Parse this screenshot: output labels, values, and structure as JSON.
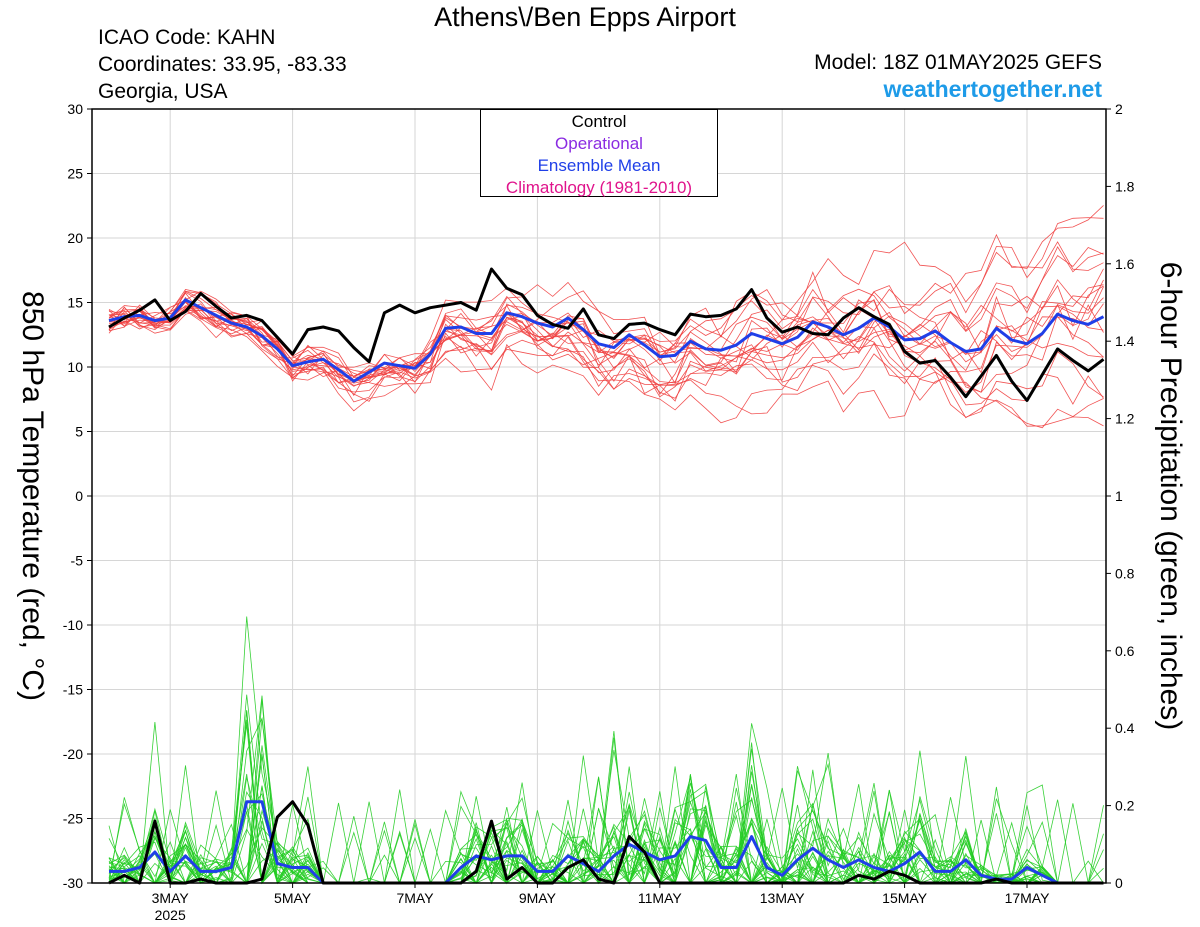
{
  "header": {
    "title": "Athens\\/Ben Epps Airport",
    "icao": "ICAO Code: KAHN",
    "coords": "Coordinates: 33.95, -83.33",
    "region": "Georgia, USA",
    "model": "Model: 18Z 01MAY2025 GEFS",
    "site": "weathertogether.net"
  },
  "legend": {
    "control": "Control",
    "operational": "Operational",
    "ensemble_mean": "Ensemble Mean",
    "climatology": "Climatology (1981-2010)"
  },
  "colors": {
    "control": "#000000",
    "operational": "#8a2be2",
    "ensemble_mean": "#1f3fe8",
    "climatology": "#e0148c",
    "members_temp": "#f04040",
    "members_precip": "#22cc22",
    "site": "#1e9be8"
  },
  "chart_data": {
    "type": "line",
    "title": "Athens\\/Ben Epps Airport",
    "ylabel_left": "850 hPa Temperature (red, °C)",
    "ylabel_right": "6-hour Precipitation (green, inches)",
    "y_left_range": [
      -30,
      30
    ],
    "y_left_ticks": [
      -30,
      -25,
      -20,
      -15,
      -10,
      -5,
      0,
      5,
      10,
      15,
      20,
      25,
      30
    ],
    "y_right_range": [
      0,
      2
    ],
    "y_right_ticks": [
      "0",
      "0.2",
      "0.4",
      "0.6",
      "0.8",
      "1",
      "1.2",
      "1.4",
      "1.6",
      "1.8",
      "2"
    ],
    "x_tick_labels": [
      "3MAY",
      "5MAY",
      "7MAY",
      "9MAY",
      "11MAY",
      "13MAY",
      "15MAY",
      "17MAY"
    ],
    "x_year_label": "2025",
    "x_step_hours": 6,
    "x_start": "2025-05-02 00Z",
    "grid": true,
    "temp_control": [
      13.1,
      13.8,
      14.4,
      15.2,
      13.6,
      14.3,
      15.7,
      14.7,
      13.8,
      14.0,
      13.6,
      12.3,
      11.0,
      12.9,
      13.1,
      12.8,
      11.5,
      10.4,
      14.2,
      14.8,
      14.2,
      14.6,
      14.8,
      15.0,
      14.4,
      17.6,
      16.1,
      15.6,
      14.0,
      13.3,
      13.0,
      14.5,
      12.5,
      12.2,
      13.3,
      13.4,
      12.9,
      12.5,
      14.1,
      13.9,
      14.0,
      14.5,
      16.0,
      13.8,
      12.7,
      13.1,
      12.6,
      12.5,
      13.8,
      14.6,
      13.9,
      13.3,
      11.2,
      10.3,
      10.5,
      9.2,
      7.7,
      9.3,
      10.9,
      8.9,
      7.4,
      9.4,
      11.4,
      10.5,
      9.7,
      10.6
    ],
    "temp_mean": [
      13.6,
      13.9,
      14.0,
      13.6,
      13.8,
      15.2,
      14.6,
      14.0,
      13.4,
      13.1,
      12.4,
      11.4,
      10.1,
      10.4,
      10.6,
      9.8,
      8.9,
      9.6,
      10.3,
      10.1,
      9.9,
      11.0,
      13.0,
      13.1,
      12.6,
      12.6,
      14.2,
      13.9,
      13.4,
      13.1,
      13.8,
      12.9,
      11.8,
      11.5,
      12.5,
      11.7,
      10.8,
      10.9,
      12.0,
      11.4,
      11.3,
      11.7,
      12.6,
      12.2,
      11.8,
      12.3,
      13.5,
      13.1,
      12.5,
      13.0,
      13.8,
      13.1,
      12.1,
      12.2,
      12.8,
      11.9,
      11.2,
      11.4,
      13.0,
      12.1,
      11.8,
      12.6,
      14.1,
      13.6,
      13.3,
      13.9
    ],
    "precip_control": [
      0.0,
      0.02,
      0.0,
      0.16,
      0.0,
      0.0,
      0.01,
      0.0,
      0.0,
      0.0,
      0.01,
      0.17,
      0.21,
      0.15,
      0.0,
      0.0,
      0.0,
      0.0,
      0.0,
      0.0,
      0.0,
      0.0,
      0.0,
      0.0,
      0.03,
      0.16,
      0.01,
      0.04,
      0.0,
      0.0,
      0.04,
      0.06,
      0.01,
      0.0,
      0.12,
      0.08,
      0.0,
      0.0,
      0.0,
      0.0,
      0.0,
      0.0,
      0.0,
      0.0,
      0.0,
      0.0,
      0.0,
      0.0,
      0.0,
      0.02,
      0.01,
      0.03,
      0.02,
      0.0,
      0.0,
      0.0,
      0.0,
      0.0,
      0.01,
      0.0,
      0.0,
      0.0,
      0.0,
      0.0,
      0.0,
      0.0
    ],
    "precip_mean": [
      0.03,
      0.03,
      0.04,
      0.08,
      0.03,
      0.07,
      0.03,
      0.03,
      0.04,
      0.21,
      0.21,
      0.05,
      0.04,
      0.04,
      0.0,
      0.0,
      0.0,
      0.0,
      0.0,
      0.0,
      0.0,
      0.0,
      0.0,
      0.04,
      0.07,
      0.06,
      0.07,
      0.07,
      0.03,
      0.03,
      0.07,
      0.05,
      0.03,
      0.07,
      0.1,
      0.08,
      0.06,
      0.07,
      0.12,
      0.11,
      0.04,
      0.04,
      0.12,
      0.04,
      0.02,
      0.06,
      0.09,
      0.06,
      0.04,
      0.06,
      0.04,
      0.03,
      0.05,
      0.08,
      0.03,
      0.03,
      0.06,
      0.02,
      0.01,
      0.01,
      0.04,
      0.02,
      0.0,
      0.0,
      0.0,
      0.0
    ]
  }
}
